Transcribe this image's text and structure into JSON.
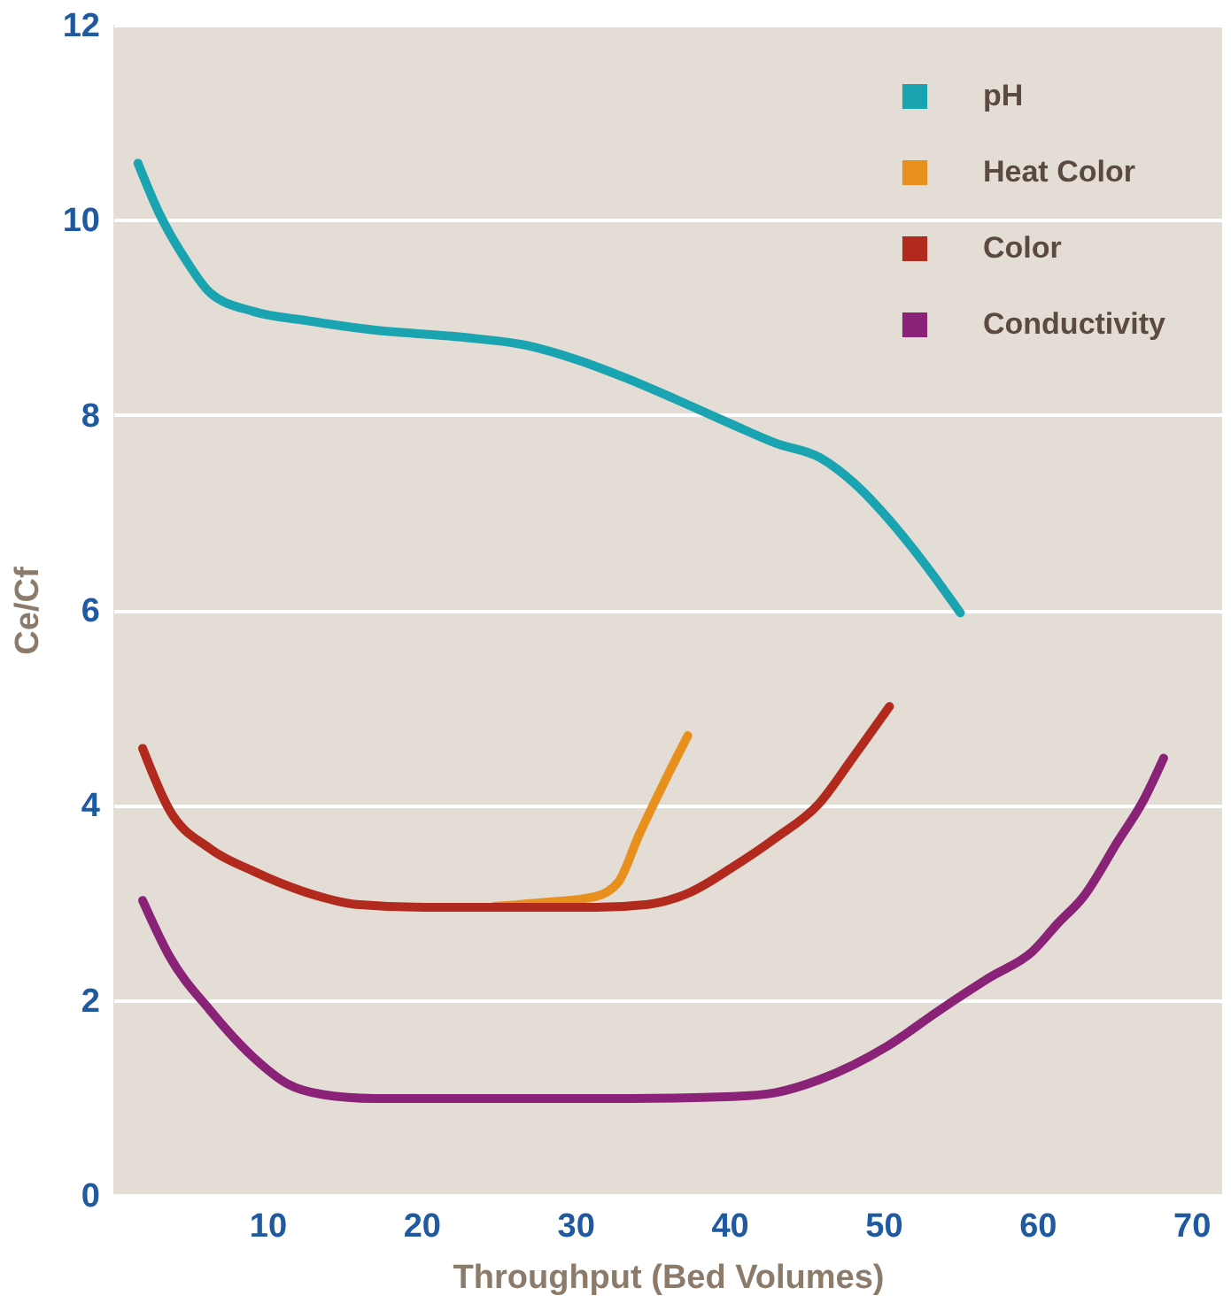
{
  "chart_data": {
    "type": "line",
    "xlabel": "Throughput (Bed Volumes)",
    "ylabel": "Ce/Cf",
    "xlim": [
      0,
      72
    ],
    "xticks": [
      10,
      20,
      30,
      40,
      50,
      60,
      70
    ],
    "ylim": [
      0,
      12
    ],
    "yticks": [
      0,
      2,
      4,
      6,
      8,
      10,
      12
    ],
    "grid": "y",
    "legend": "top right",
    "marker": "none",
    "line_style": "solid",
    "series": [
      {
        "name": "pH",
        "color": "#1aa3b0",
        "x": [
          1.6,
          3.0,
          4.7,
          6.3,
          9.1,
          12.4,
          16.9,
          22.4,
          26.9,
          30.2,
          33.4,
          36.8,
          40.2,
          43.0,
          45.9,
          48.1,
          50.4,
          52.6,
          55.0
        ],
        "values": [
          10.58,
          10.06,
          9.59,
          9.25,
          9.06,
          8.97,
          8.87,
          8.8,
          8.71,
          8.56,
          8.37,
          8.14,
          7.9,
          7.71,
          7.56,
          7.3,
          6.92,
          6.49,
          5.97
        ]
      },
      {
        "name": "Heat Color",
        "color": "#e8901e",
        "x": [
          24.7,
          28.0,
          31.3,
          32.8,
          34.1,
          35.8,
          37.3
        ],
        "values": [
          2.96,
          3.0,
          3.06,
          3.21,
          3.68,
          4.24,
          4.71
        ]
      },
      {
        "name": "Color",
        "color": "#b22a1e",
        "x": [
          1.9,
          3.6,
          6.3,
          9.1,
          12.4,
          15.8,
          20.2,
          25.8,
          31.3,
          34.7,
          37.4,
          40.2,
          43.0,
          45.8,
          48.0,
          50.4
        ],
        "values": [
          4.58,
          3.96,
          3.55,
          3.32,
          3.11,
          2.98,
          2.95,
          2.95,
          2.95,
          2.98,
          3.1,
          3.36,
          3.66,
          4.01,
          4.48,
          5.01
        ]
      },
      {
        "name": "Conductivity",
        "color": "#8a2277",
        "x": [
          1.9,
          3.6,
          6.3,
          9.1,
          11.3,
          13.6,
          16.9,
          22.4,
          28.0,
          33.6,
          40.2,
          43.0,
          45.8,
          48.0,
          50.2,
          53.6,
          56.9,
          59.7,
          61.3,
          63.0,
          65.2,
          66.9,
          68.2
        ],
        "values": [
          3.02,
          2.46,
          1.89,
          1.41,
          1.14,
          1.03,
          0.99,
          0.99,
          0.99,
          0.99,
          1.01,
          1.05,
          1.18,
          1.33,
          1.52,
          1.89,
          2.23,
          2.5,
          2.78,
          3.06,
          3.62,
          4.05,
          4.48
        ]
      }
    ]
  }
}
